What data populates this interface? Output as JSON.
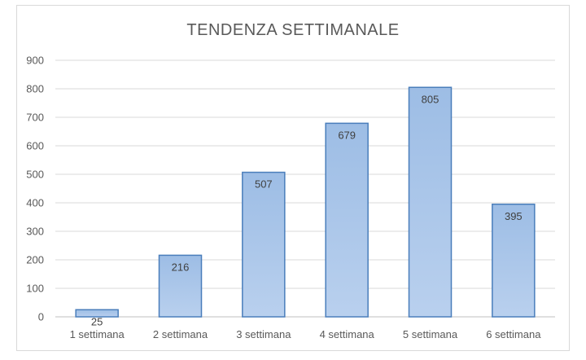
{
  "chart_data": {
    "type": "bar",
    "title": "TENDENZA SETTIMANALE",
    "categories": [
      "1 settimana",
      "2 settimana",
      "3 settimana",
      "4 settimana",
      "5 settimana",
      "6 settimana"
    ],
    "values": [
      25,
      216,
      507,
      679,
      805,
      395
    ],
    "ylim": [
      0,
      900
    ],
    "yticks": [
      0,
      100,
      200,
      300,
      400,
      500,
      600,
      700,
      800,
      900
    ],
    "grid": true,
    "legend": "none",
    "bar_color_top": "#9dbde5",
    "bar_color_bottom": "#b9d0ee",
    "bar_border": "#4a7ebb"
  }
}
